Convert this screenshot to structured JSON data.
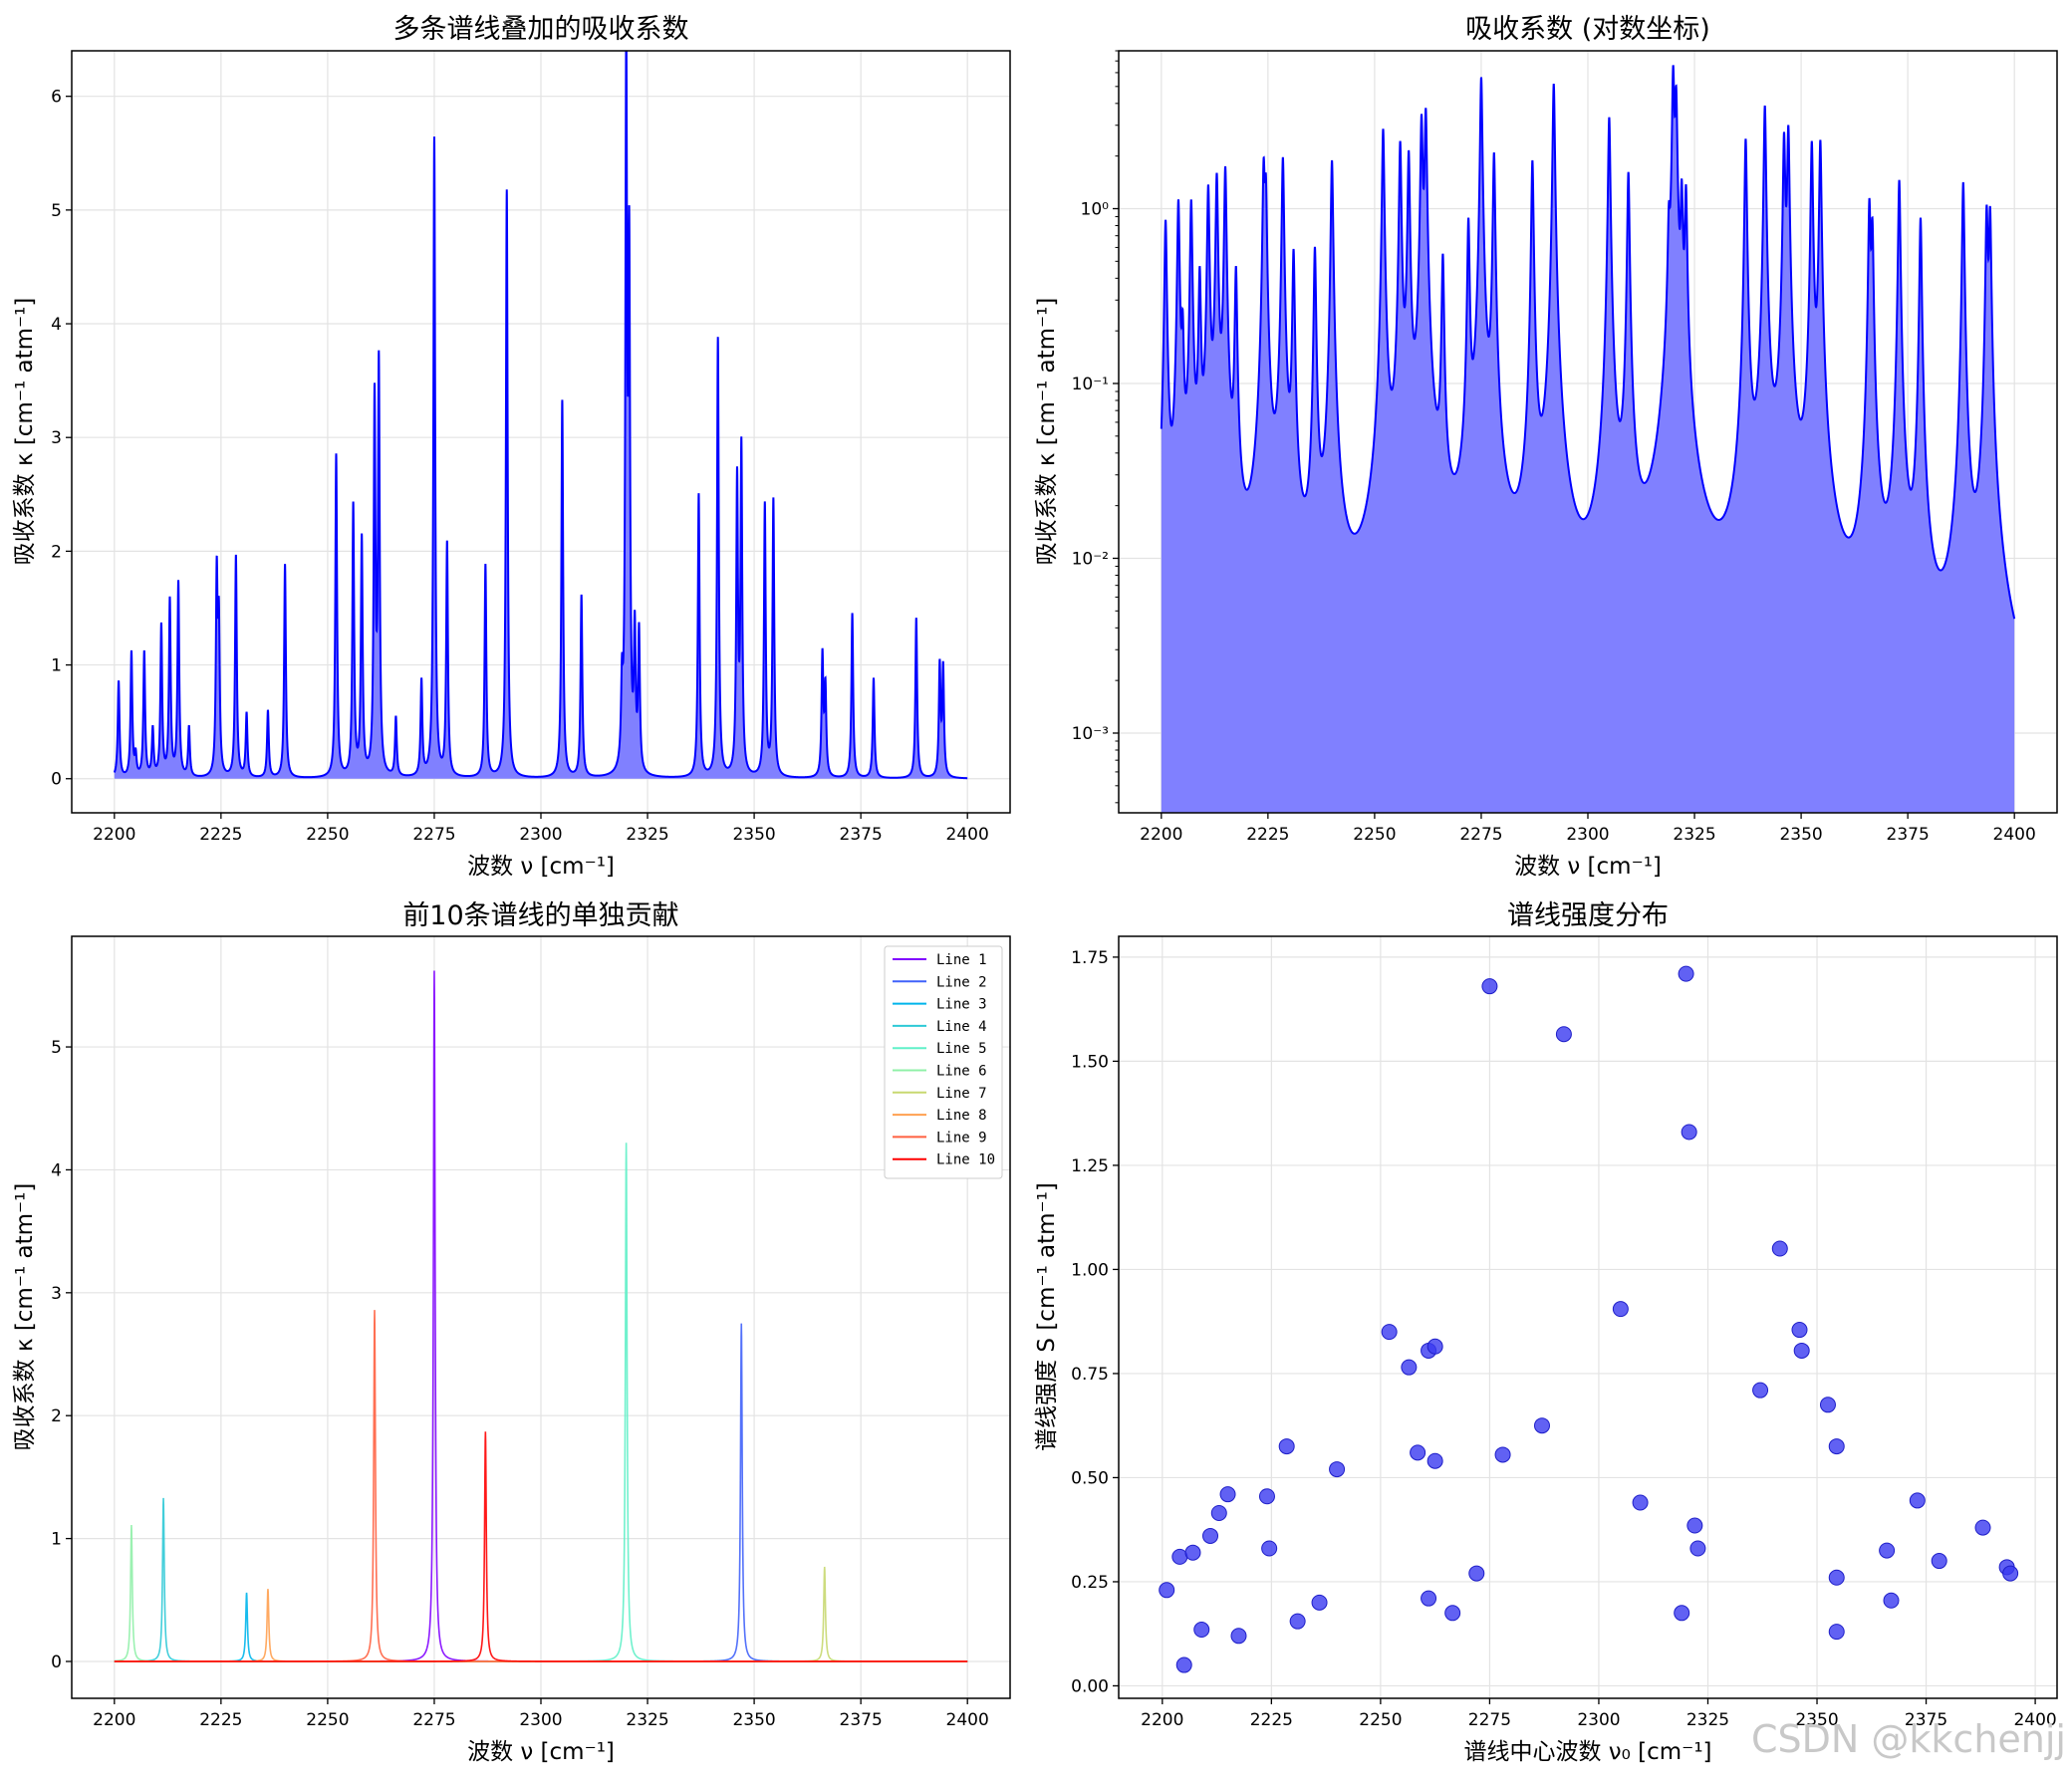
{
  "colors": {
    "spectrum": "#0000ff",
    "fill": "#8080ff",
    "scatter": "#3a3af0",
    "grid": "#e3e3e3",
    "series": [
      "#8000ff",
      "#4062fa",
      "#00b5eb",
      "#40ecd4",
      "#80ffb4",
      "#c0eb8c",
      "#ffb360",
      "#ff6030",
      "#ff0000"
    ]
  },
  "watermark": "CSDN @kkchenjj",
  "chart_data": [
    {
      "type": "area",
      "title": "多条谱线叠加的吸收系数",
      "xlabel": "波数 ν [cm⁻¹]",
      "ylabel": "吸收系数 κ [cm⁻¹ atm⁻¹]",
      "xlim": [
        2190,
        2410
      ],
      "ylim": [
        -0.3,
        6.4
      ],
      "xticks": [
        "2200",
        "2225",
        "2250",
        "2275",
        "2300",
        "2325",
        "2350",
        "2375",
        "2400"
      ],
      "yticks": [
        "0",
        "1",
        "2",
        "3",
        "4",
        "5",
        "6"
      ],
      "grid": true,
      "x_range": [
        2200,
        2400
      ],
      "peaks": [
        [
          2201,
          0.85
        ],
        [
          2204,
          1.1
        ],
        [
          2205,
          0.18
        ],
        [
          2207,
          1.1
        ],
        [
          2209,
          0.42
        ],
        [
          2211,
          1.33
        ],
        [
          2213,
          1.55
        ],
        [
          2215,
          1.71
        ],
        [
          2217.5,
          0.44
        ],
        [
          2224,
          1.71
        ],
        [
          2224.5,
          1.26
        ],
        [
          2228.5,
          1.95
        ],
        [
          2231,
          0.56
        ],
        [
          2236,
          0.59
        ],
        [
          2240,
          1.88
        ],
        [
          2252,
          2.84
        ],
        [
          2256,
          2.38
        ],
        [
          2258,
          2.08
        ],
        [
          2261,
          3.26
        ],
        [
          2262,
          3.57
        ],
        [
          2266,
          0.52
        ],
        [
          2272,
          0.84
        ],
        [
          2275,
          5.62
        ],
        [
          2278,
          2.05
        ],
        [
          2287,
          1.87
        ],
        [
          2292,
          5.17
        ],
        [
          2305,
          3.32
        ],
        [
          2309.5,
          1.6
        ],
        [
          2319,
          0.66
        ],
        [
          2320,
          6.1
        ],
        [
          2320.7,
          4.33
        ],
        [
          2322,
          1.18
        ],
        [
          2323,
          1.22
        ],
        [
          2337,
          2.49
        ],
        [
          2341.5,
          3.86
        ],
        [
          2346,
          2.57
        ],
        [
          2347,
          2.85
        ],
        [
          2352.5,
          2.39
        ],
        [
          2354.5,
          2.43
        ],
        [
          2366,
          1.06
        ],
        [
          2366.7,
          0.77
        ],
        [
          2373,
          1.45
        ],
        [
          2378,
          0.88
        ],
        [
          2388,
          1.41
        ],
        [
          2393.5,
          0.97
        ],
        [
          2394.3,
          0.95
        ]
      ]
    },
    {
      "type": "area",
      "title": "吸收系数 (对数坐标)",
      "xlabel": "波数 ν [cm⁻¹]",
      "ylabel": "吸收系数 κ [cm⁻¹ atm⁻¹]",
      "yscale": "log",
      "xlim": [
        2190,
        2410
      ],
      "ylim": [
        0.00035,
        8
      ],
      "xticks": [
        "2200",
        "2225",
        "2250",
        "2275",
        "2300",
        "2325",
        "2350",
        "2375",
        "2400"
      ],
      "yticks": [
        "10⁰",
        "10⁻¹",
        "10⁻²",
        "10⁻³"
      ],
      "grid": true,
      "note": "same spectrum as panel 1 on a logarithmic y axis"
    },
    {
      "type": "line",
      "title": "前10条谱线的单独贡献",
      "xlabel": "波数 ν [cm⁻¹]",
      "ylabel": "吸收系数 κ [cm⁻¹ atm⁻¹]",
      "xlim": [
        2190,
        2410
      ],
      "ylim": [
        -0.3,
        5.9
      ],
      "xticks": [
        "2200",
        "2225",
        "2250",
        "2275",
        "2300",
        "2325",
        "2350",
        "2375",
        "2400"
      ],
      "yticks": [
        "0",
        "1",
        "2",
        "3",
        "4",
        "5"
      ],
      "grid": true,
      "legend": "top-right",
      "series": [
        {
          "name": "Line 1",
          "center": 2275,
          "peak": 5.62,
          "color": "#8000ff"
        },
        {
          "name": "Line 2",
          "center": 2347,
          "peak": 2.75,
          "color": "#4062fa"
        },
        {
          "name": "Line 3",
          "center": 2231,
          "peak": 0.56,
          "color": "#00b5eb"
        },
        {
          "name": "Line 4",
          "center": 2211.5,
          "peak": 1.33,
          "color": "#2ec9d6"
        },
        {
          "name": "Line 5",
          "center": 2320,
          "peak": 4.22,
          "color": "#60f0c8"
        },
        {
          "name": "Line 6",
          "center": 2204,
          "peak": 1.11,
          "color": "#90f0a8"
        },
        {
          "name": "Line 7",
          "center": 2366.5,
          "peak": 0.77,
          "color": "#c8d870"
        },
        {
          "name": "Line 8",
          "center": 2236,
          "peak": 0.59,
          "color": "#ffa050"
        },
        {
          "name": "Line 9",
          "center": 2261,
          "peak": 2.86,
          "color": "#ff6040"
        },
        {
          "name": "Line 10",
          "center": 2287,
          "peak": 1.87,
          "color": "#ff0000"
        }
      ]
    },
    {
      "type": "scatter",
      "title": "谱线强度分布",
      "xlabel": "谱线中心波数 ν₀ [cm⁻¹]",
      "ylabel": "谱线强度 S [cm⁻¹ atm⁻¹]",
      "xlim": [
        2190,
        2405
      ],
      "ylim": [
        -0.03,
        1.8
      ],
      "xticks": [
        "2200",
        "2225",
        "2250",
        "2275",
        "2300",
        "2325",
        "2350",
        "2375",
        "2400"
      ],
      "yticks": [
        "0.00",
        "0.25",
        "0.50",
        "0.75",
        "1.00",
        "1.25",
        "1.50",
        "1.75"
      ],
      "grid": true,
      "points": [
        [
          2201,
          0.23
        ],
        [
          2204,
          0.31
        ],
        [
          2205,
          0.05
        ],
        [
          2207,
          0.32
        ],
        [
          2209,
          0.135
        ],
        [
          2211,
          0.36
        ],
        [
          2213,
          0.415
        ],
        [
          2215,
          0.46
        ],
        [
          2217.5,
          0.12
        ],
        [
          2224,
          0.455
        ],
        [
          2224.5,
          0.33
        ],
        [
          2228.5,
          0.575
        ],
        [
          2231,
          0.155
        ],
        [
          2236,
          0.2
        ],
        [
          2240,
          0.52
        ],
        [
          2252,
          0.85
        ],
        [
          2256.5,
          0.765
        ],
        [
          2258.5,
          0.56
        ],
        [
          2261,
          0.805
        ],
        [
          2261,
          0.21
        ],
        [
          2262.5,
          0.815
        ],
        [
          2262.5,
          0.54
        ],
        [
          2266.5,
          0.175
        ],
        [
          2272,
          0.27
        ],
        [
          2275,
          1.68
        ],
        [
          2278,
          0.555
        ],
        [
          2287,
          0.625
        ],
        [
          2292,
          1.565
        ],
        [
          2305,
          0.905
        ],
        [
          2309.5,
          0.44
        ],
        [
          2319,
          0.175
        ],
        [
          2320,
          1.71
        ],
        [
          2320.7,
          1.33
        ],
        [
          2322,
          0.385
        ],
        [
          2322.7,
          0.33
        ],
        [
          2337,
          0.71
        ],
        [
          2341.5,
          1.05
        ],
        [
          2346,
          0.855
        ],
        [
          2346.5,
          0.805
        ],
        [
          2352.5,
          0.675
        ],
        [
          2354.5,
          0.575
        ],
        [
          2354.5,
          0.26
        ],
        [
          2354.5,
          0.13
        ],
        [
          2366,
          0.325
        ],
        [
          2367,
          0.205
        ],
        [
          2373,
          0.445
        ],
        [
          2378,
          0.3
        ],
        [
          2388,
          0.38
        ],
        [
          2393.5,
          0.285
        ],
        [
          2394.3,
          0.27
        ]
      ]
    }
  ]
}
